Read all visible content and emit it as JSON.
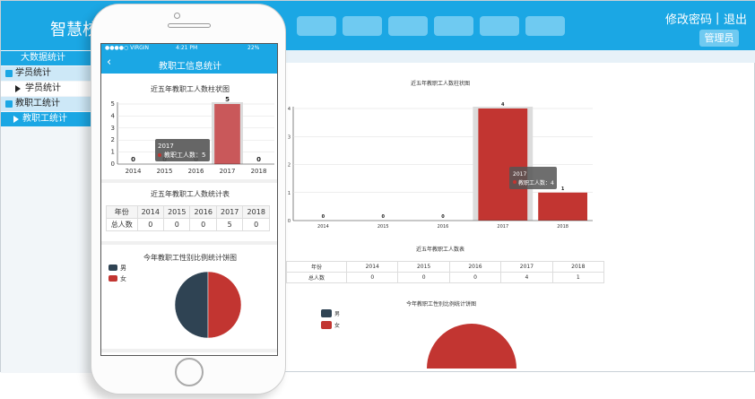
{
  "desktop": {
    "brand": "智慧校",
    "header_links": {
      "change_password": "修改密码",
      "separator": "|",
      "logout": "退出"
    },
    "admin_label": "管理员",
    "sidebar": [
      {
        "label": "大数据统计"
      },
      {
        "label": "学员统计"
      },
      {
        "label": "学员统计"
      },
      {
        "label": "教职工统计"
      },
      {
        "label": "教职工统计"
      }
    ],
    "bar_title": "近五年教职工人数柱状图",
    "tooltip": {
      "year": "2017",
      "text": "教职工人数：4"
    },
    "table_title": "近五年教职工人数表",
    "pie_title": "今年教职工性别比例统计饼图",
    "legend": {
      "male": "男",
      "female": "女"
    }
  },
  "phone": {
    "status": {
      "carrier": "●●●●○ VIRGIN",
      "time": "4:21 PM",
      "battery": "22%"
    },
    "nav_title": "教职工信息统计",
    "back_icon": "‹",
    "bar_title": "近五年教职工人数柱状图",
    "tooltip": {
      "year": "2017",
      "text": "教职工人数：5"
    },
    "table_title": "近五年教职工人数统计表",
    "pie_title": "今年教职工性别比例统计饼图",
    "legend": {
      "male": "男",
      "female": "女"
    }
  },
  "tables": {
    "desktop": {
      "header": [
        "年份",
        "2014",
        "2015",
        "2016",
        "2017",
        "2018"
      ],
      "row": [
        "总人数",
        "0",
        "0",
        "0",
        "4",
        "1"
      ]
    },
    "phone": {
      "header": [
        "年份",
        "2014",
        "2015",
        "2016",
        "2017",
        "2018"
      ],
      "row": [
        "总人数",
        "0",
        "0",
        "0",
        "5",
        "0"
      ]
    }
  },
  "colors": {
    "brand_blue": "#1ba7e4",
    "bar_red": "#c23531",
    "bar_red_light": "#c9585a",
    "navy": "#2f4353"
  },
  "chart_data": [
    {
      "id": "desktop-bar",
      "type": "bar",
      "title": "近五年教职工人数柱状图",
      "categories": [
        "2014",
        "2015",
        "2016",
        "2017",
        "2018"
      ],
      "values": [
        0,
        0,
        0,
        4,
        1
      ],
      "ylim": [
        0,
        4
      ],
      "yticks": [
        0,
        1,
        2,
        3,
        4
      ],
      "highlight": "2017"
    },
    {
      "id": "phone-bar",
      "type": "bar",
      "title": "近五年教职工人数柱状图",
      "categories": [
        "2014",
        "2015",
        "2016",
        "2017",
        "2018"
      ],
      "values": [
        0,
        0,
        0,
        5,
        0
      ],
      "ylim": [
        0,
        5
      ],
      "yticks": [
        0,
        1,
        2,
        3,
        4,
        5
      ],
      "highlight": "2017"
    },
    {
      "id": "phone-pie",
      "type": "pie",
      "title": "今年教职工性别比例统计饼图",
      "labels": [
        "男",
        "女"
      ],
      "values": [
        50,
        50
      ]
    },
    {
      "id": "desktop-pie",
      "type": "pie",
      "title": "今年教职工性别比例统计饼图",
      "labels": [
        "男",
        "女"
      ],
      "values": [
        0,
        100
      ]
    }
  ]
}
